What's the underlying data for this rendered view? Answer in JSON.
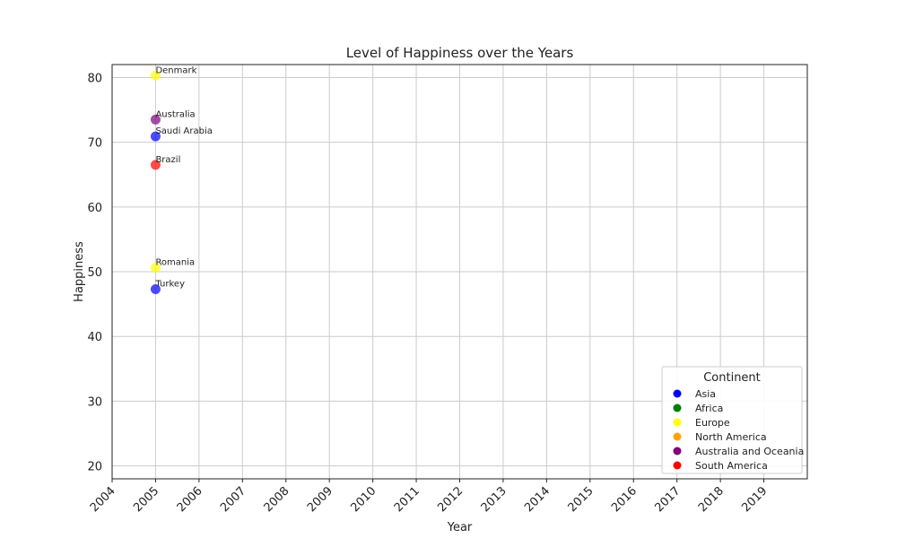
{
  "chart_data": {
    "type": "scatter",
    "title": "Level of Happiness over the Years",
    "xlabel": "Year",
    "ylabel": "Happiness",
    "xlim": [
      2004,
      2020
    ],
    "ylim": [
      18,
      82
    ],
    "x_ticks": [
      "2004",
      "2005",
      "2006",
      "2007",
      "2008",
      "2009",
      "2010",
      "2011",
      "2012",
      "2013",
      "2014",
      "2015",
      "2016",
      "2017",
      "2018",
      "2019"
    ],
    "y_ticks": [
      "20",
      "30",
      "40",
      "50",
      "60",
      "70",
      "80"
    ],
    "grid": true,
    "legend": {
      "title": "Continent",
      "placement": "bottom-right",
      "entries": [
        {
          "name": "Asia",
          "color": "#0000ff"
        },
        {
          "name": "Africa",
          "color": "#008000"
        },
        {
          "name": "Europe",
          "color": "#ffff00"
        },
        {
          "name": "North America",
          "color": "#ffa500"
        },
        {
          "name": "Australia and Oceania",
          "color": "#800080"
        },
        {
          "name": "South America",
          "color": "#ff0000"
        }
      ]
    },
    "points": [
      {
        "label": "Denmark",
        "x": 2005,
        "y": 80.3,
        "continent": "Europe",
        "color": "#ffff00"
      },
      {
        "label": "Australia",
        "x": 2005,
        "y": 73.5,
        "continent": "Australia and Oceania",
        "color": "#800080"
      },
      {
        "label": "Saudi Arabia",
        "x": 2005,
        "y": 70.9,
        "continent": "Asia",
        "color": "#0000ff"
      },
      {
        "label": "Brazil",
        "x": 2005,
        "y": 66.5,
        "continent": "South America",
        "color": "#ff0000"
      },
      {
        "label": "Romania",
        "x": 2005,
        "y": 50.6,
        "continent": "Europe",
        "color": "#ffff00"
      },
      {
        "label": "Turkey",
        "x": 2005,
        "y": 47.3,
        "continent": "Asia",
        "color": "#0000ff"
      }
    ]
  }
}
